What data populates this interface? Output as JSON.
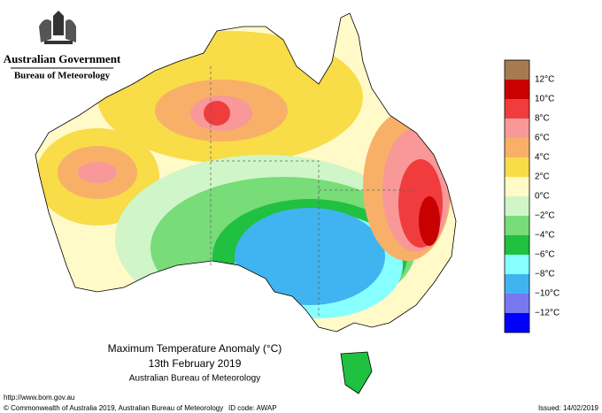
{
  "header": {
    "government": "Australian Government",
    "agency": "Bureau of Meteorology"
  },
  "legend": {
    "labels": [
      "12°C",
      "10°C",
      "8°C",
      "6°C",
      "4°C",
      "2°C",
      "0°C",
      "−2°C",
      "−4°C",
      "−6°C",
      "−8°C",
      "−10°C",
      "−12°C"
    ],
    "colors": [
      "#a87a50",
      "#c80000",
      "#f03c3c",
      "#f89898",
      "#f8b068",
      "#f8dc48",
      "#fffac8",
      "#d0f5c8",
      "#78dc78",
      "#20c040",
      "#88ffff",
      "#40b4f0",
      "#7878f0",
      "#0000ff"
    ]
  },
  "caption": {
    "title": "Maximum Temperature Anomaly (°C)",
    "date": "13th February 2019",
    "source": "Australian Bureau of Meteorology"
  },
  "footer": {
    "url": "http://www.bom.gov.au",
    "copyright": "© Commonwealth of Australia 2019, Australian Bureau of Meteorology",
    "id_code": "ID code: AWAP",
    "issued": "Issued: 14/02/2019"
  }
}
